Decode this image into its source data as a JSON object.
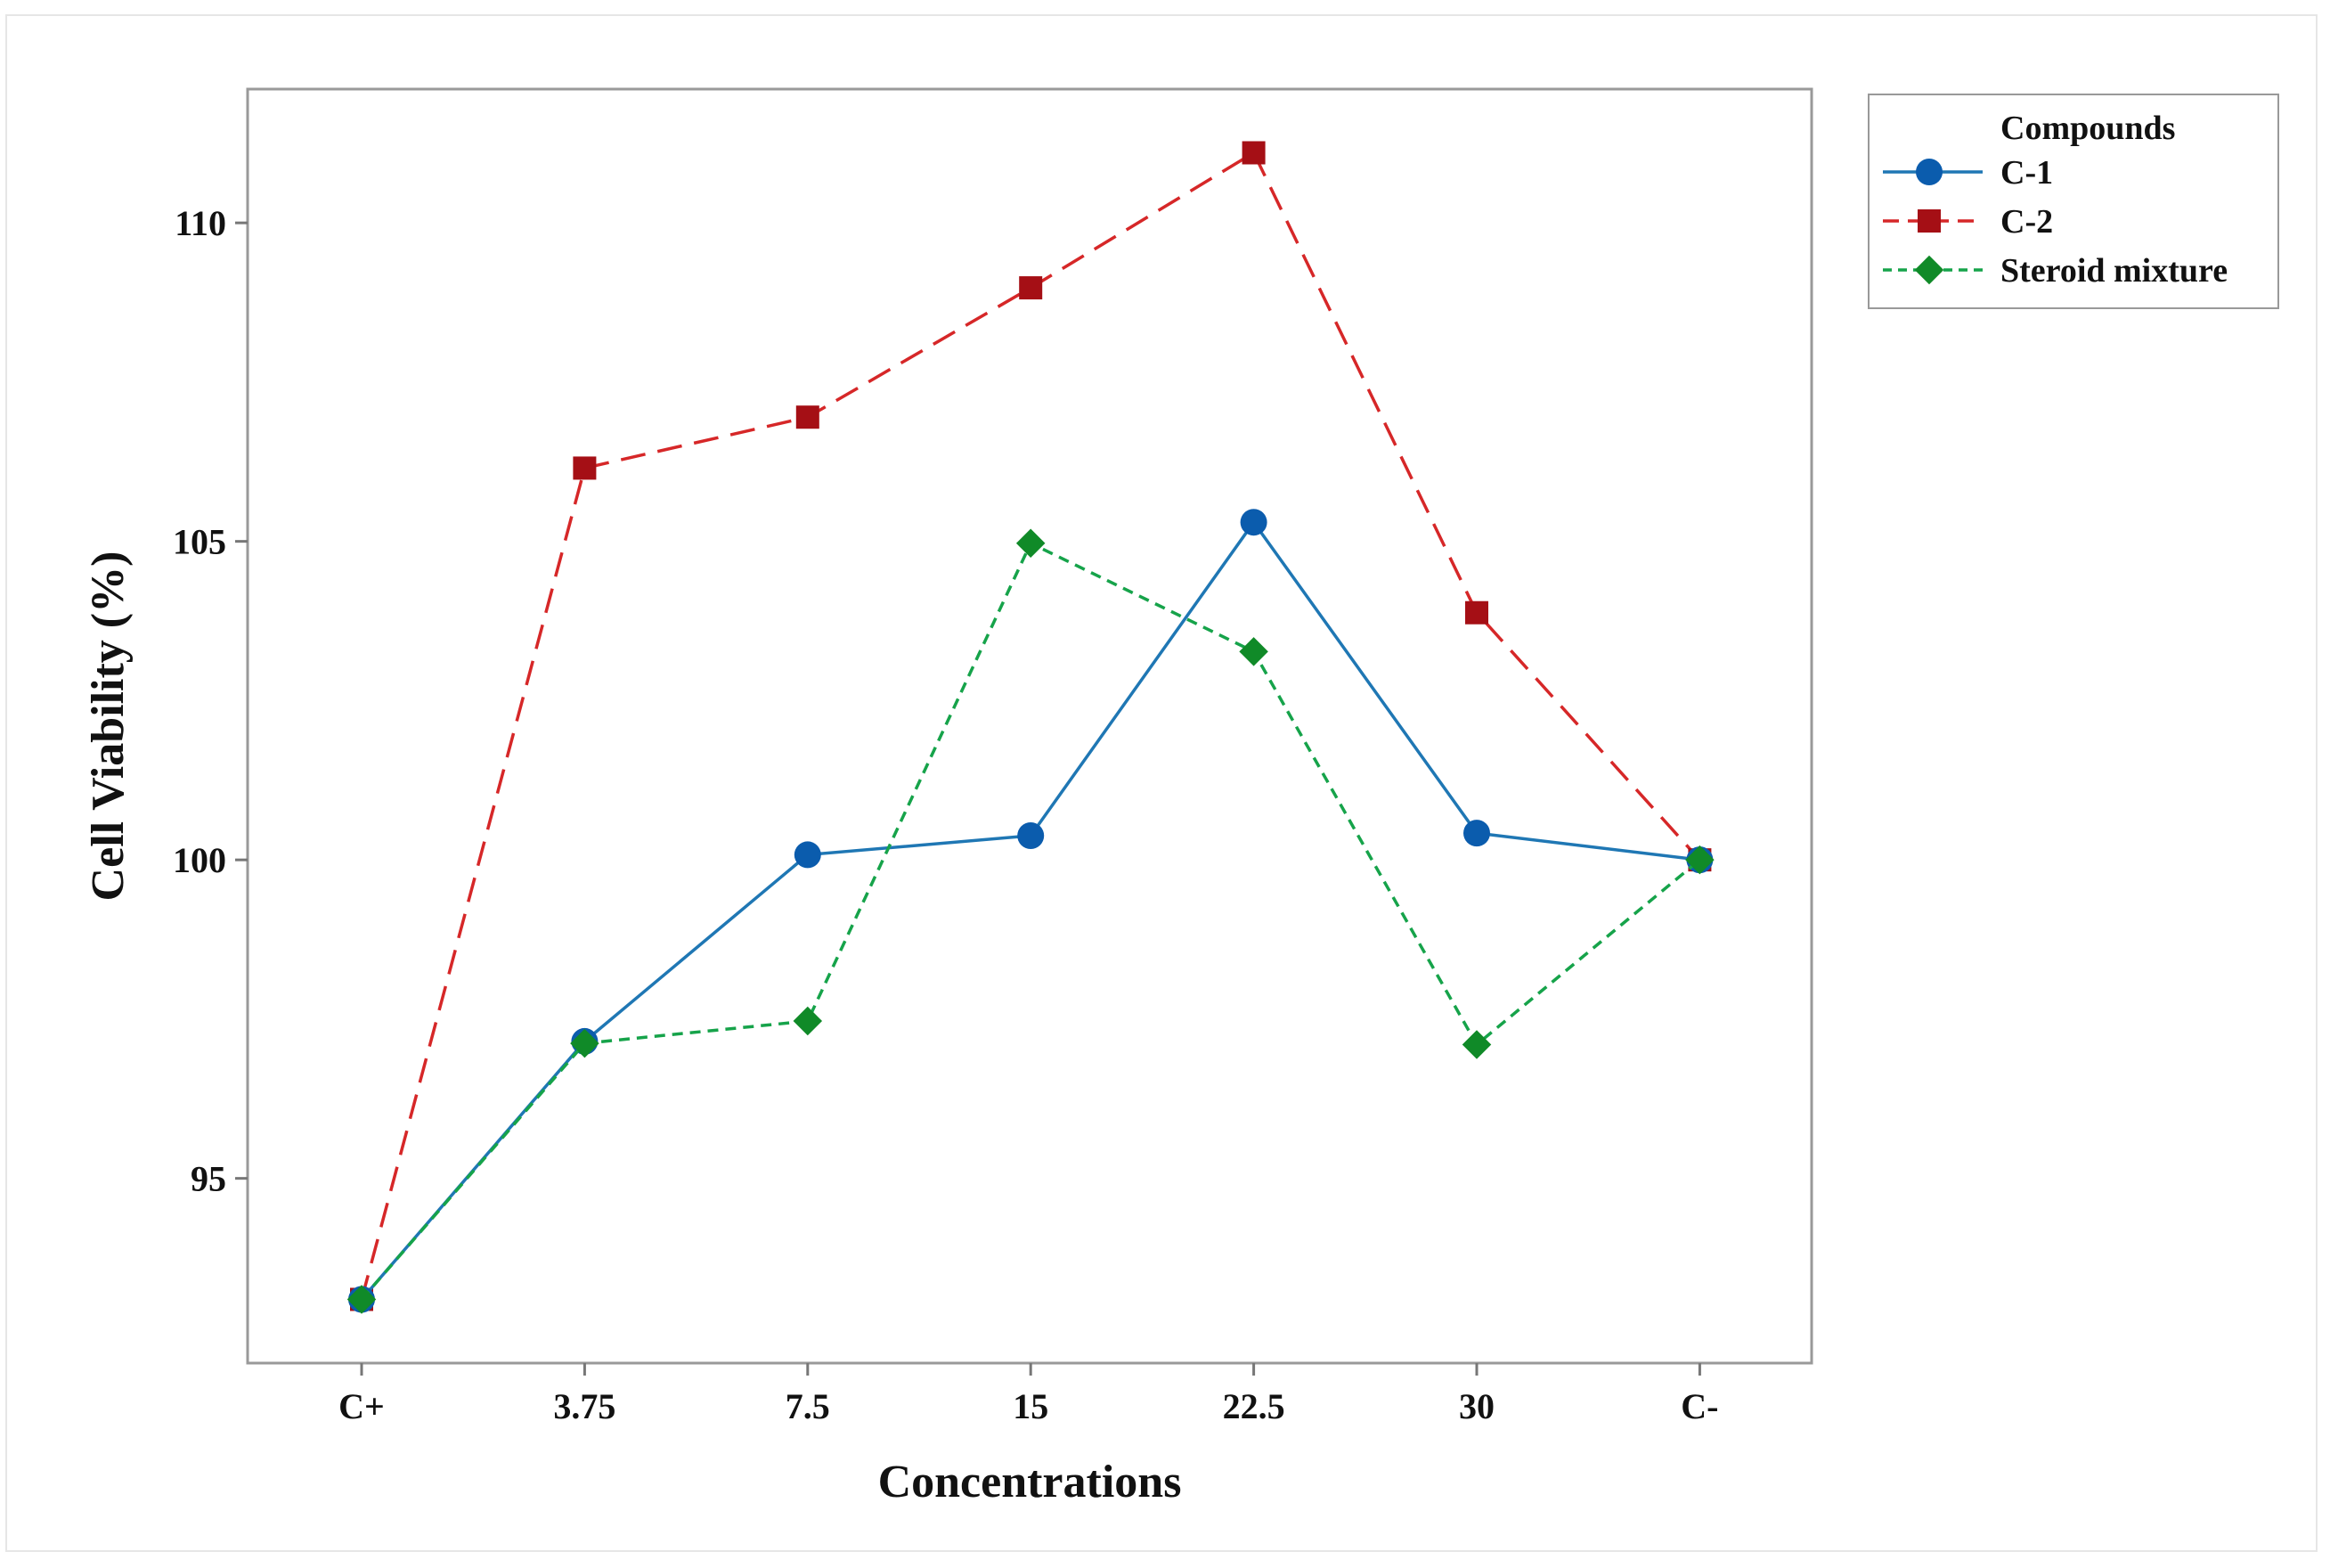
{
  "chart_data": {
    "type": "line",
    "title": "",
    "xlabel": "Concentrations",
    "ylabel": "Cell Viability (%)",
    "categories": [
      "C+",
      "3.75",
      "7.5",
      "15",
      "22.5",
      "30",
      "C-"
    ],
    "y_ticks": [
      95,
      100,
      105,
      110
    ],
    "ylim": [
      92.1,
      112.1
    ],
    "legend_title": "Compounds",
    "legend_position": "top-right, outside plot",
    "series": [
      {
        "name": "C-1",
        "values": [
          93.1,
          97.15,
          100.08,
          100.38,
          105.3,
          100.42,
          100.0
        ],
        "color": "#1f77b4",
        "marker_color": "#0b5cad",
        "line_style": "solid",
        "marker": "circle"
      },
      {
        "name": "C-2",
        "values": [
          93.1,
          106.15,
          106.95,
          108.98,
          111.1,
          103.88,
          100.0
        ],
        "color": "#d62728",
        "marker_color": "#a50f15",
        "line_style": "dashed",
        "marker": "square"
      },
      {
        "name": "Steroid mixture",
        "values": [
          93.1,
          97.12,
          97.47,
          104.97,
          103.27,
          97.1,
          100.0
        ],
        "color": "#16a34a",
        "marker_color": "#108a28",
        "line_style": "dotted",
        "marker": "diamond"
      }
    ]
  }
}
